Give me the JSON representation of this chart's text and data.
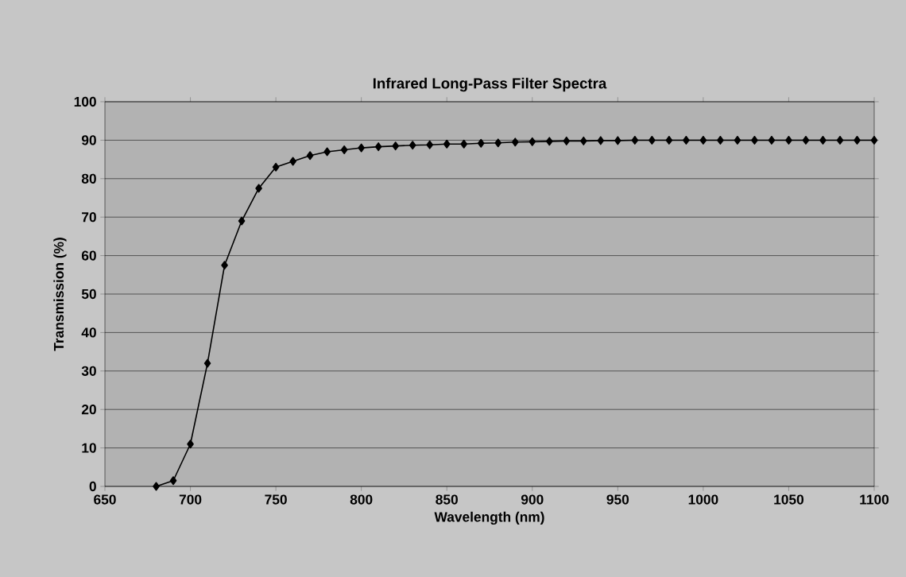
{
  "chart_data": {
    "type": "line",
    "title": "Infrared Long-Pass Filter Spectra",
    "xlabel": "Wavelength (nm)",
    "ylabel": "Transmission (%)",
    "x": [
      680,
      690,
      700,
      710,
      720,
      730,
      740,
      750,
      760,
      770,
      780,
      790,
      800,
      810,
      820,
      830,
      840,
      850,
      860,
      870,
      880,
      890,
      900,
      910,
      920,
      930,
      940,
      950,
      960,
      970,
      980,
      990,
      1000,
      1010,
      1020,
      1030,
      1040,
      1050,
      1060,
      1070,
      1080,
      1090,
      1100
    ],
    "series": [
      {
        "color": "#000000",
        "values": [
          0,
          1.5,
          11,
          32,
          57.5,
          69,
          77.5,
          83,
          84.5,
          86,
          87,
          87.5,
          88,
          88.3,
          88.5,
          88.7,
          88.8,
          89,
          89,
          89.2,
          89.3,
          89.5,
          89.6,
          89.7,
          89.8,
          89.8,
          89.9,
          89.9,
          90,
          90,
          90,
          90,
          90,
          90,
          90,
          90,
          90,
          90,
          90,
          90,
          90,
          90,
          90
        ]
      }
    ],
    "xlim": [
      650,
      1100
    ],
    "xticks": [
      650,
      700,
      750,
      800,
      850,
      900,
      950,
      1000,
      1050,
      1100
    ],
    "ylim": [
      0,
      100
    ],
    "yticks": [
      0,
      10,
      20,
      30,
      40,
      50,
      60,
      70,
      80,
      90,
      100
    ],
    "grid": "y",
    "marker": "diamond",
    "line_style": "solid"
  }
}
